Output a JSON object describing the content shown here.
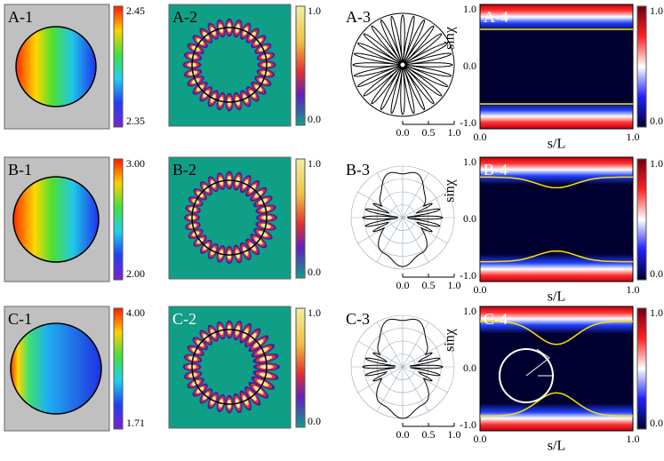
{
  "rows": [
    {
      "labels": [
        "A-1",
        "A-2",
        "A-3",
        "A-4"
      ],
      "colorbar1": [
        "2.45",
        "2.35"
      ],
      "colorbar2": [
        "1.0",
        "0.0"
      ],
      "polar_ticks": [
        "0.0",
        "0.5",
        "1.0"
      ],
      "colorbar4": [
        "1.0",
        "0.0"
      ],
      "yticks": [
        "1.0",
        "0.0",
        "-1.0"
      ],
      "xticks": [
        "0.0",
        "1.0"
      ],
      "ylabel": "sinχ",
      "xlabel": "s/L"
    },
    {
      "labels": [
        "B-1",
        "B-2",
        "B-3",
        "B-4"
      ],
      "colorbar1": [
        "3.00",
        "2.00"
      ],
      "colorbar2": [
        "1.0",
        "0.0"
      ],
      "polar_ticks": [
        "0.0",
        "0.5",
        "1.0"
      ],
      "colorbar4": [
        "1.0",
        "0.0"
      ],
      "yticks": [
        "1.0",
        "0.0",
        "-1.0"
      ],
      "xticks": [
        "0.0",
        "1.0"
      ],
      "ylabel": "sinχ",
      "xlabel": "s/L"
    },
    {
      "labels": [
        "C-1",
        "C-2",
        "C-3",
        "C-4"
      ],
      "colorbar1": [
        "4.00",
        "1.71"
      ],
      "colorbar2": [
        "1.0",
        "0.0"
      ],
      "polar_ticks": [
        "0.0",
        "0.5",
        "1.0"
      ],
      "colorbar4": [
        "1.0",
        "0.0"
      ],
      "yticks": [
        "1.0",
        "0.0",
        "-1.0"
      ],
      "xticks": [
        "0.0",
        "1.0"
      ],
      "ylabel": "sinχ",
      "xlabel": "s/L"
    }
  ]
}
